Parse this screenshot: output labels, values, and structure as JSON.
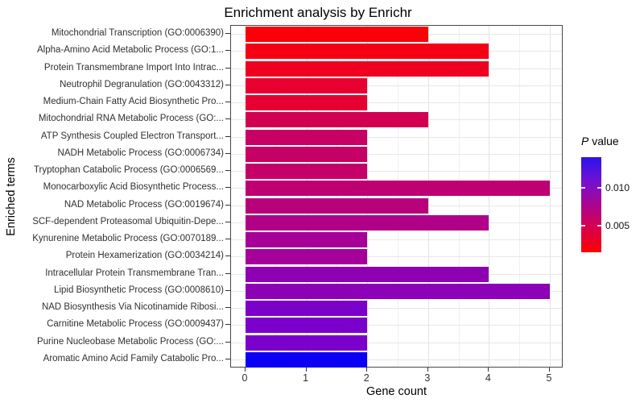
{
  "chart_data": {
    "type": "bar",
    "orientation": "horizontal",
    "title": "Enrichment analysis by Enrichr",
    "xlabel": "Gene count",
    "ylabel": "Enriched terms",
    "xlim": [
      0,
      5.45
    ],
    "x_ticks": [
      "0",
      "1",
      "2",
      "3",
      "4",
      "5"
    ],
    "grid": true,
    "categories": [
      "Mitochondrial Transcription (GO:0006390)",
      "Alpha-Amino Acid Metabolic Process (GO:1...",
      "Protein Transmembrane Import Into Intrac...",
      "Neutrophil Degranulation (GO:0043312)",
      "Medium-Chain Fatty Acid Biosynthetic Pro...",
      "Mitochondrial RNA Metabolic Process (GO:...",
      "ATP Synthesis Coupled Electron Transport...",
      "NADH Metabolic Process (GO:0006734)",
      "Tryptophan Catabolic Process (GO:0006569...",
      "Monocarboxylic Acid Biosynthetic Process...",
      "NAD Metabolic Process (GO:0019674)",
      "SCF-dependent Proteasomal Ubiquitin-Depe...",
      "Kynurenine Metabolic Process (GO:0070189...",
      "Protein Hexamerization (GO:0034214)",
      "Intracellular Protein Transmembrane Tran...",
      "Lipid Biosynthetic Process (GO:0008610)",
      "NAD Biosynthesis Via Nicotinamide Ribosi...",
      "Carnitine Metabolic Process (GO:0009437)",
      "Purine Nucleobase Metabolic Process (GO:...",
      "Aromatic Amino Acid Family Catabolic Pro..."
    ],
    "values": [
      3,
      4,
      4,
      2,
      2,
      3,
      2,
      2,
      2,
      5,
      3,
      4,
      2,
      2,
      4,
      5,
      2,
      2,
      2,
      2
    ],
    "bar_colors": [
      "#FB0006",
      "#F60014",
      "#EF0020",
      "#E70030",
      "#E60031",
      "#D10051",
      "#C90063",
      "#C70066",
      "#C60069",
      "#BE0073",
      "#B9007B",
      "#B10088",
      "#A70099",
      "#A5009C",
      "#8E00B4",
      "#8C00B7",
      "#7B00CA",
      "#7B00CB",
      "#7A00CC",
      "#0B00F4"
    ],
    "legend": {
      "title_italic": "P",
      "title_rest": " value",
      "position": "right",
      "ticks": [
        "0.010",
        "0.005"
      ],
      "gradient_top_to_bottom": [
        "#2B13E8",
        "#7311D3",
        "#AB0590",
        "#D8004A",
        "#FB0101"
      ]
    }
  }
}
